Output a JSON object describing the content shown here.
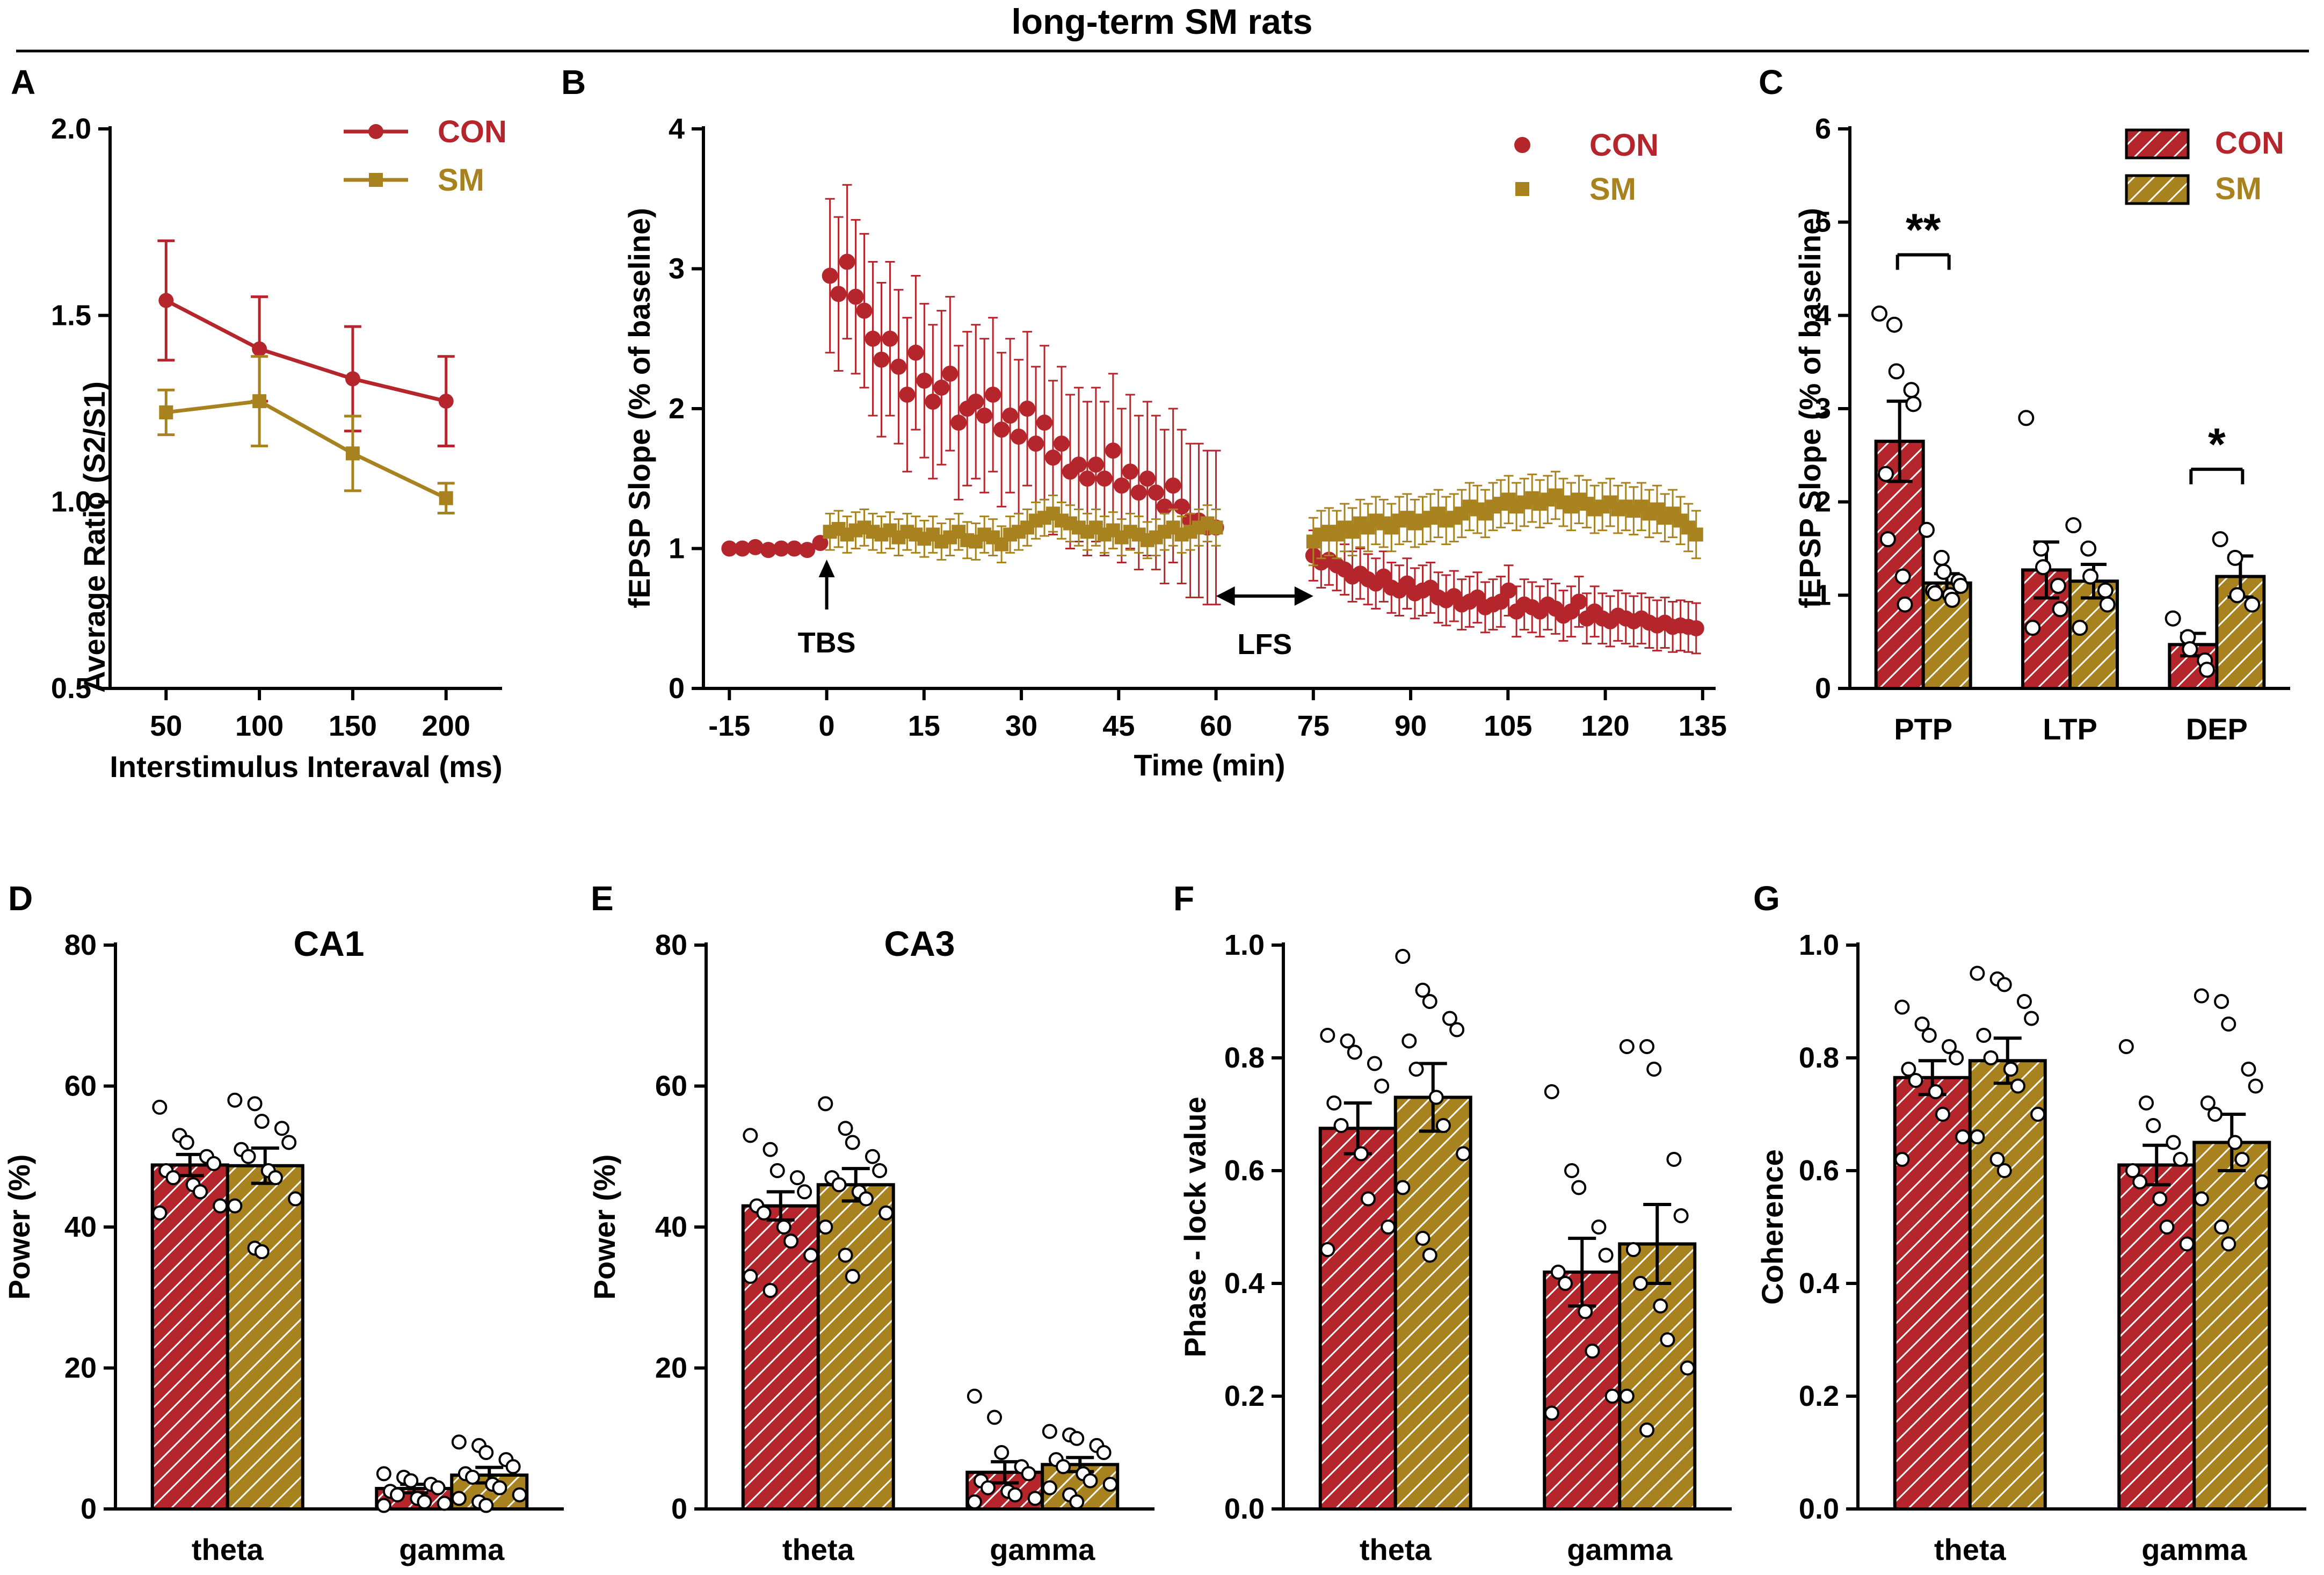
{
  "figure_title": "long-term SM rats",
  "colors": {
    "CON": "#B5252C",
    "SM": "#A8821E",
    "axis": "#000000"
  },
  "chart_data": [
    {
      "panel": "A",
      "type": "line",
      "title": "",
      "xlabel": "Interstimulus Interaval (ms)",
      "ylabel": "Average Ratio (S2/S1)",
      "x": [
        50,
        100,
        150,
        200
      ],
      "xlim": [
        20,
        230
      ],
      "ylim": [
        0.5,
        2.0
      ],
      "xticks": [
        "50",
        "100",
        "150",
        "200"
      ],
      "yticks": [
        "0.5",
        "1.0",
        "1.5",
        "2.0"
      ],
      "series": [
        {
          "name": "CON",
          "values": [
            1.54,
            1.41,
            1.33,
            1.27
          ],
          "err": [
            0.16,
            0.14,
            0.14,
            0.12
          ]
        },
        {
          "name": "SM",
          "values": [
            1.24,
            1.27,
            1.13,
            1.01
          ],
          "err": [
            0.06,
            0.12,
            0.1,
            0.04
          ]
        }
      ],
      "legend": "top-right"
    },
    {
      "panel": "B",
      "type": "scatter",
      "title": "",
      "xlabel": "Time (min)",
      "ylabel": "fEPSP  Slope  (% of baseline)",
      "xlim": [
        -19,
        137
      ],
      "ylim": [
        0,
        4
      ],
      "xticks": [
        "-15",
        "0",
        "15",
        "30",
        "45",
        "60",
        "75",
        "90",
        "105",
        "120",
        "135"
      ],
      "yticks": [
        "0",
        "1",
        "2",
        "3",
        "4"
      ],
      "series": [
        {
          "name": "CON",
          "segments": [
            {
              "x0": -15,
              "x1": -1,
              "n": 8,
              "y": [
                1.0,
                1.0,
                1.01,
                0.99,
                1.0,
                1.0,
                0.99,
                1.04
              ],
              "err": 0.04
            },
            {
              "x0": 0.5,
              "x1": 60,
              "n": 46,
              "y": [
                2.95,
                2.82,
                3.05,
                2.8,
                2.7,
                2.5,
                2.35,
                2.5,
                2.3,
                2.1,
                2.4,
                2.2,
                2.05,
                2.15,
                2.25,
                1.9,
                2.0,
                2.05,
                1.95,
                2.1,
                1.85,
                1.95,
                1.8,
                2.0,
                1.75,
                1.9,
                1.65,
                1.75,
                1.55,
                1.6,
                1.5,
                1.6,
                1.5,
                1.7,
                1.45,
                1.55,
                1.4,
                1.5,
                1.4,
                1.3,
                1.45,
                1.3,
                1.2,
                1.2,
                1.15,
                1.15
              ],
              "err": 0.55
            },
            {
              "x0": 75,
              "x1": 134,
              "n": 50,
              "y": [
                0.95,
                0.9,
                0.92,
                0.88,
                0.85,
                0.8,
                0.82,
                0.78,
                0.75,
                0.8,
                0.72,
                0.7,
                0.75,
                0.68,
                0.7,
                0.72,
                0.65,
                0.63,
                0.66,
                0.6,
                0.62,
                0.65,
                0.58,
                0.6,
                0.62,
                0.7,
                0.55,
                0.6,
                0.58,
                0.55,
                0.6,
                0.57,
                0.52,
                0.55,
                0.62,
                0.5,
                0.55,
                0.5,
                0.48,
                0.52,
                0.5,
                0.48,
                0.5,
                0.47,
                0.45,
                0.47,
                0.44,
                0.45,
                0.44,
                0.43
              ],
              "err": 0.18
            }
          ]
        },
        {
          "name": "SM",
          "segments": [
            {
              "x0": 0.5,
              "x1": 60,
              "n": 46,
              "y": [
                1.12,
                1.14,
                1.1,
                1.13,
                1.15,
                1.12,
                1.1,
                1.13,
                1.08,
                1.12,
                1.1,
                1.07,
                1.1,
                1.05,
                1.08,
                1.12,
                1.06,
                1.05,
                1.1,
                1.08,
                1.03,
                1.1,
                1.12,
                1.15,
                1.2,
                1.22,
                1.25,
                1.2,
                1.18,
                1.15,
                1.12,
                1.15,
                1.1,
                1.13,
                1.08,
                1.12,
                1.1,
                1.06,
                1.08,
                1.12,
                1.15,
                1.1,
                1.12,
                1.15,
                1.18,
                1.15
              ],
              "err": 0.13
            },
            {
              "x0": 75,
              "x1": 134,
              "n": 50,
              "y": [
                1.05,
                1.1,
                1.12,
                1.1,
                1.15,
                1.12,
                1.18,
                1.15,
                1.2,
                1.18,
                1.15,
                1.2,
                1.22,
                1.18,
                1.2,
                1.22,
                1.25,
                1.2,
                1.22,
                1.25,
                1.3,
                1.28,
                1.25,
                1.3,
                1.32,
                1.35,
                1.3,
                1.33,
                1.36,
                1.32,
                1.35,
                1.38,
                1.33,
                1.3,
                1.35,
                1.32,
                1.28,
                1.3,
                1.33,
                1.28,
                1.3,
                1.27,
                1.3,
                1.25,
                1.28,
                1.22,
                1.25,
                1.2,
                1.15,
                1.1
              ],
              "err": 0.17
            }
          ]
        }
      ],
      "annotations": [
        {
          "text": "TBS",
          "x": 0
        },
        {
          "text": "LFS",
          "x_from": 60,
          "x_to": 75
        }
      ],
      "legend": "top-right"
    },
    {
      "panel": "C",
      "type": "bar",
      "title": "",
      "xlabel": "",
      "ylabel": "fEPSP Slope (% of baseline)",
      "categories": [
        "PTP",
        "LTP",
        "DEP"
      ],
      "ylim": [
        0,
        6
      ],
      "yticks": [
        "0",
        "1",
        "2",
        "3",
        "4",
        "5",
        "6"
      ],
      "series": [
        {
          "name": "CON",
          "values": [
            2.65,
            1.27,
            0.47
          ],
          "err": [
            0.43,
            0.3,
            0.12
          ],
          "points": [
            [
              4.02,
              3.9,
              3.4,
              3.2,
              3.05,
              2.3,
              1.6,
              1.2,
              0.9
            ],
            [
              2.9,
              1.5,
              1.3,
              1.1,
              0.85,
              0.65
            ],
            [
              0.75,
              0.55,
              0.42,
              0.3,
              0.2
            ]
          ]
        },
        {
          "name": "SM",
          "values": [
            1.13,
            1.15,
            1.2
          ],
          "err": [
            0.1,
            0.18,
            0.22
          ],
          "points": [
            [
              1.7,
              1.4,
              1.25,
              1.15,
              1.1,
              1.05,
              1.02,
              1.0,
              0.95
            ],
            [
              1.75,
              1.5,
              1.2,
              1.05,
              0.9,
              0.65
            ],
            [
              1.6,
              1.4,
              1.0,
              0.9
            ]
          ]
        }
      ],
      "significance": [
        {
          "category": "PTP",
          "label": "**"
        },
        {
          "category": "DEP",
          "label": "*"
        }
      ],
      "legend": "top-right"
    },
    {
      "panel": "D",
      "type": "bar",
      "title": "CA1",
      "xlabel": "",
      "ylabel": "Power (%)",
      "categories": [
        "theta",
        "gamma"
      ],
      "ylim": [
        0,
        80
      ],
      "yticks": [
        "0",
        "20",
        "40",
        "60",
        "80"
      ],
      "series": [
        {
          "name": "CON",
          "values": [
            48.8,
            2.9
          ],
          "err": [
            1.5,
            0.6
          ],
          "points": [
            [
              57,
              53,
              52,
              50,
              49,
              48,
              47,
              46,
              45,
              43,
              42
            ],
            [
              5,
              4.5,
              4,
              3.5,
              3,
              2.5,
              2,
              1.5,
              1,
              0.8,
              0.5
            ]
          ]
        },
        {
          "name": "SM",
          "values": [
            48.7,
            4.8
          ],
          "err": [
            2.5,
            1.1
          ],
          "points": [
            [
              58,
              57.5,
              55,
              54,
              52,
              51,
              50,
              48,
              47,
              44,
              43,
              37,
              36.5
            ],
            [
              9.5,
              9,
              8,
              7,
              6,
              5,
              4.5,
              3.5,
              3,
              2,
              1.5,
              1,
              0.5
            ]
          ]
        }
      ]
    },
    {
      "panel": "E",
      "type": "bar",
      "title": "CA3",
      "xlabel": "",
      "ylabel": "Power (%)",
      "categories": [
        "theta",
        "gamma"
      ],
      "ylim": [
        0,
        80
      ],
      "yticks": [
        "0",
        "20",
        "40",
        "60",
        "80"
      ],
      "series": [
        {
          "name": "CON",
          "values": [
            43,
            5.2
          ],
          "err": [
            2.0,
            1.5
          ],
          "points": [
            [
              53,
              51,
              48,
              47,
              45,
              43,
              42,
              40,
              38,
              36,
              33,
              31
            ],
            [
              16,
              13,
              8,
              6,
              5,
              4,
              3,
              2.5,
              2,
              1.5,
              1
            ]
          ]
        },
        {
          "name": "SM",
          "values": [
            46,
            6.3
          ],
          "err": [
            2.3,
            1.0
          ],
          "points": [
            [
              57.5,
              54,
              52,
              50,
              48,
              47,
              46,
              45,
              44,
              42,
              40,
              36,
              33
            ],
            [
              11,
              10.5,
              10,
              9,
              8,
              7,
              6,
              5,
              4,
              3.5,
              3,
              2,
              1
            ]
          ]
        }
      ]
    },
    {
      "panel": "F",
      "type": "bar",
      "title": "",
      "xlabel": "",
      "ylabel": "Phase   - lock value",
      "categories": [
        "theta",
        "gamma"
      ],
      "ylim": [
        0,
        1
      ],
      "yticks": [
        "0.0",
        "0.2",
        "0.4",
        "0.6",
        "0.8",
        "1.0"
      ],
      "series": [
        {
          "name": "CON",
          "values": [
            0.675,
            0.42
          ],
          "err": [
            0.045,
            0.06
          ],
          "points": [
            [
              0.84,
              0.83,
              0.81,
              0.79,
              0.75,
              0.72,
              0.68,
              0.63,
              0.55,
              0.5,
              0.46
            ],
            [
              0.74,
              0.6,
              0.57,
              0.5,
              0.45,
              0.42,
              0.4,
              0.35,
              0.28,
              0.2,
              0.17
            ]
          ]
        },
        {
          "name": "SM",
          "values": [
            0.73,
            0.47
          ],
          "err": [
            0.06,
            0.07
          ],
          "points": [
            [
              0.98,
              0.92,
              0.9,
              0.87,
              0.85,
              0.83,
              0.78,
              0.73,
              0.68,
              0.63,
              0.57,
              0.48,
              0.45
            ],
            [
              0.82,
              0.82,
              0.78,
              0.62,
              0.52,
              0.46,
              0.4,
              0.36,
              0.3,
              0.25,
              0.2,
              0.14
            ]
          ]
        }
      ]
    },
    {
      "panel": "G",
      "type": "bar",
      "title": "",
      "xlabel": "",
      "ylabel": "Coherence",
      "categories": [
        "theta",
        "gamma"
      ],
      "ylim": [
        0,
        1
      ],
      "yticks": [
        "0.0",
        "0.2",
        "0.4",
        "0.6",
        "0.8",
        "1.0"
      ],
      "series": [
        {
          "name": "CON",
          "values": [
            0.765,
            0.61
          ],
          "err": [
            0.03,
            0.035
          ],
          "points": [
            [
              0.89,
              0.86,
              0.84,
              0.82,
              0.8,
              0.78,
              0.76,
              0.74,
              0.7,
              0.66,
              0.62
            ],
            [
              0.82,
              0.72,
              0.68,
              0.65,
              0.62,
              0.6,
              0.58,
              0.55,
              0.5,
              0.47
            ]
          ]
        },
        {
          "name": "SM",
          "values": [
            0.795,
            0.65
          ],
          "err": [
            0.04,
            0.05
          ],
          "points": [
            [
              0.95,
              0.94,
              0.93,
              0.9,
              0.87,
              0.84,
              0.8,
              0.78,
              0.75,
              0.7,
              0.66,
              0.62,
              0.6
            ],
            [
              0.91,
              0.9,
              0.86,
              0.78,
              0.75,
              0.72,
              0.7,
              0.65,
              0.62,
              0.58,
              0.55,
              0.5,
              0.47
            ]
          ]
        }
      ]
    }
  ]
}
